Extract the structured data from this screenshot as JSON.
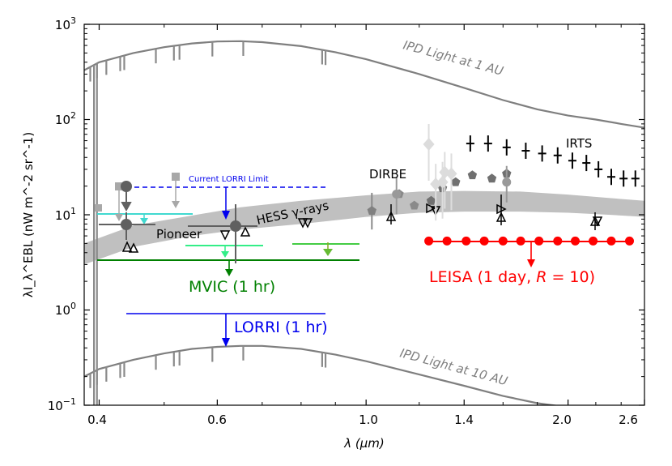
{
  "chart_data": {
    "type": "scatter",
    "xscale": "log",
    "yscale": "log",
    "xlim": [
      0.38,
      2.6
    ],
    "ylim": [
      0.1,
      1000
    ],
    "xlabel": "λ (μm)",
    "ylabel": "λI_λ^EBL (nW m^-2 sr^-1)",
    "x_ticks": [
      0.4,
      0.6,
      1.0,
      1.4,
      2.0,
      2.6
    ],
    "x_tick_labels": [
      "0.4",
      "0.6",
      "1.0",
      "1.4",
      "2.0",
      "2.6"
    ],
    "y_ticks": [
      0.1,
      1,
      10,
      100,
      1000
    ],
    "y_tick_labels": [
      "10",
      "10",
      "10",
      "10",
      "10"
    ],
    "y_tick_exponents": [
      "−1",
      "0",
      "1",
      "2",
      "3"
    ],
    "annotations": {
      "ipd_1au": "IPD Light at 1 AU",
      "ipd_10au": "IPD Light at 10 AU",
      "current_lorri": "Current LORRI Limit",
      "pioneer": "Pioneer",
      "hess": "HESS γ-rays",
      "dirbe": "DIRBE",
      "irts": "IRTS",
      "mvic": "MVIC (1 hr)",
      "lorri": "LORRI (1 hr)",
      "leisa": "LEISA (1 day, ",
      "leisa_r": "R",
      "leisa_tail": " = 10)"
    },
    "colors": {
      "ipd": "#7f7f7f",
      "hess_band": "#c0c0c0",
      "current_lorri": "#0000ee",
      "lorri": "#0000ee",
      "mvic": "#008000",
      "leisa": "#ff0000",
      "cyan": "#40d9d0",
      "light_green": "#33ee88"
    },
    "series": [
      {
        "name": "IPD Light at 1 AU",
        "kind": "curve",
        "x": [
          0.38,
          0.4,
          0.45,
          0.5,
          0.55,
          0.6,
          0.65,
          0.7,
          0.8,
          0.9,
          1.0,
          1.2,
          1.4,
          1.6,
          1.8,
          2.0,
          2.2,
          2.4,
          2.6
        ],
        "y": [
          330,
          400,
          500,
          575,
          630,
          660,
          665,
          650,
          590,
          510,
          430,
          300,
          215,
          160,
          128,
          110,
          100,
          90,
          82
        ]
      },
      {
        "name": "IPD Light at 10 AU",
        "kind": "curve",
        "x": [
          0.38,
          0.4,
          0.45,
          0.5,
          0.55,
          0.6,
          0.65,
          0.7,
          0.8,
          0.9,
          1.0,
          1.2,
          1.4,
          1.6,
          1.8,
          2.0,
          2.2
        ],
        "y": [
          0.2,
          0.24,
          0.3,
          0.35,
          0.39,
          0.41,
          0.42,
          0.42,
          0.39,
          0.34,
          0.29,
          0.21,
          0.16,
          0.125,
          0.105,
          0.095,
          0.09
        ]
      },
      {
        "name": "HESS γ-rays",
        "kind": "band",
        "x": [
          0.38,
          0.45,
          0.55,
          0.65,
          0.8,
          1.0,
          1.2,
          1.4,
          1.7,
          2.0,
          2.3,
          2.6
        ],
        "lo": [
          3.0,
          4.6,
          6.0,
          7.0,
          8.0,
          9.5,
          10.5,
          10.8,
          10.8,
          10.5,
          10.0,
          9.5
        ],
        "hi": [
          5.0,
          7.7,
          9.8,
          12.0,
          14.0,
          16.0,
          17.5,
          17.8,
          17.5,
          16.3,
          15.0,
          14.0
        ]
      },
      {
        "name": "Current LORRI Limit",
        "kind": "hline",
        "x": [
          0.44,
          0.88
        ],
        "y": 19
      },
      {
        "name": "LORRI (1 hr)",
        "kind": "hline",
        "x": [
          0.44,
          0.88
        ],
        "y": 0.9
      },
      {
        "name": "MVIC (1 hr)",
        "kind": "hline",
        "x": [
          0.4,
          0.98
        ],
        "y": 3.35
      },
      {
        "name": "LEISA (1 day, R = 10)",
        "kind": "points",
        "x": [
          1.24,
          1.32,
          1.41,
          1.5,
          1.6,
          1.7,
          1.81,
          1.93,
          2.05,
          2.18,
          2.32,
          2.47
        ],
        "y": [
          5.3,
          5.3,
          5.3,
          5.3,
          5.3,
          5.3,
          5.3,
          5.3,
          5.3,
          5.3,
          5.3,
          5.3
        ]
      },
      {
        "name": "IRTS",
        "kind": "points",
        "x": [
          1.43,
          1.52,
          1.62,
          1.73,
          1.83,
          1.93,
          2.03,
          2.13,
          2.22,
          2.32,
          2.42,
          2.52
        ],
        "y": [
          56,
          56,
          51,
          47,
          44,
          42,
          37,
          35,
          30,
          25,
          24,
          24
        ]
      },
      {
        "name": "DIRBE",
        "kind": "points",
        "x": [
          1.12,
          1.18,
          1.25,
          1.3,
          1.36,
          1.44,
          1.54,
          1.62
        ],
        "y": [
          16.5,
          12.5,
          14,
          19,
          22,
          26,
          24,
          27
        ]
      }
    ]
  }
}
